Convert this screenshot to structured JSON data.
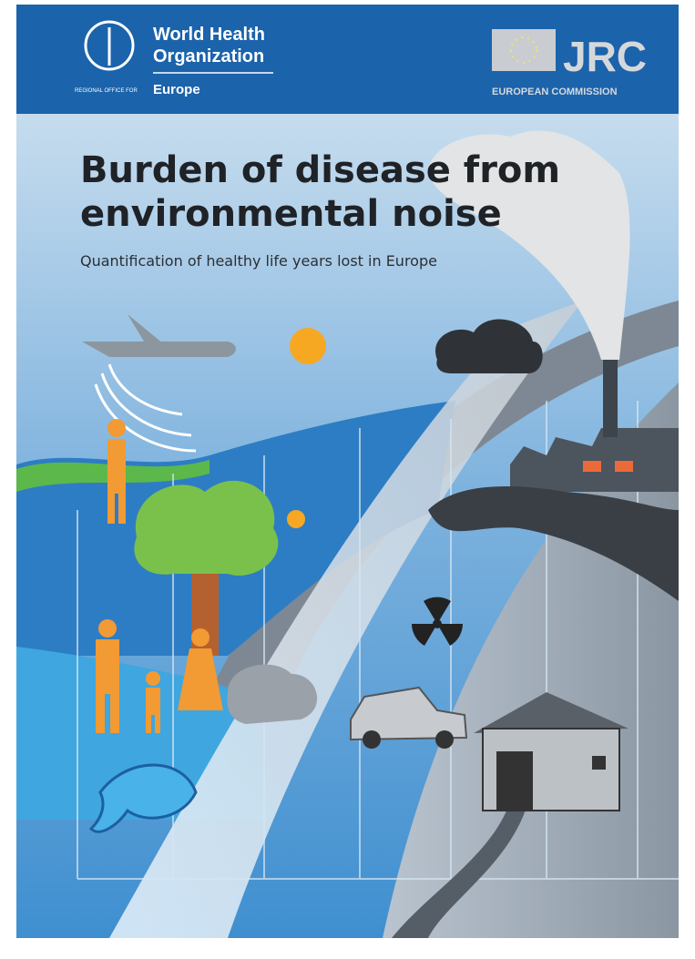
{
  "header": {
    "who_name_lines": [
      "World Health",
      "Organization"
    ],
    "who_region_prefix": "REGIONAL OFFICE FOR",
    "who_region": "Europe",
    "jrc_acronym": "JRC",
    "jrc_name": "EUROPEAN COMMISSION"
  },
  "cover": {
    "title_lines": [
      "Burden of disease from",
      "environmental noise"
    ],
    "subtitle": "Quantification of healthy life years lost in Europe"
  }
}
